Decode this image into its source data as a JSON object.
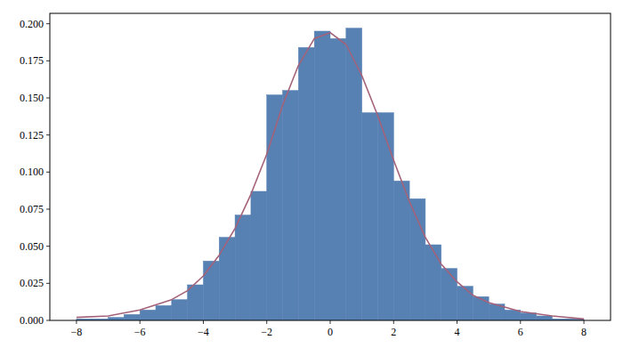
{
  "chart_data": {
    "type": "histogram",
    "bins": [
      -8,
      -7.5,
      -7,
      -6.5,
      -6,
      -5.5,
      -5,
      -4.5,
      -4,
      -3.5,
      -3,
      -2.5,
      -2,
      -1.5,
      -1,
      -0.5,
      0,
      0.5,
      1,
      1.5,
      2,
      2.5,
      3,
      3.5,
      4,
      4.5,
      5,
      5.5,
      6,
      6.5,
      7,
      7.5,
      8
    ],
    "values": [
      0.001,
      0.001,
      0.002,
      0.004,
      0.007,
      0.01,
      0.014,
      0.024,
      0.04,
      0.056,
      0.071,
      0.087,
      0.152,
      0.155,
      0.184,
      0.195,
      0.19,
      0.197,
      0.14,
      0.14,
      0.094,
      0.082,
      0.051,
      0.035,
      0.023,
      0.016,
      0.011,
      0.007,
      0.005,
      0.003,
      0.001,
      0.001
    ],
    "color": "#5780b3",
    "series": [
      {
        "type": "line",
        "color": "#a3627a",
        "x": [
          -8,
          -7,
          -6,
          -5,
          -4.5,
          -4,
          -3.5,
          -3,
          -2.5,
          -2,
          -1.5,
          -1,
          -0.5,
          0,
          0.5,
          1,
          1.5,
          2,
          2.5,
          3,
          3.5,
          4,
          4.5,
          5,
          6,
          7,
          8
        ],
        "values": [
          0.002,
          0.003,
          0.007,
          0.014,
          0.02,
          0.03,
          0.044,
          0.062,
          0.085,
          0.112,
          0.145,
          0.172,
          0.19,
          0.194,
          0.186,
          0.165,
          0.138,
          0.108,
          0.08,
          0.056,
          0.038,
          0.026,
          0.017,
          0.012,
          0.006,
          0.003,
          0.001
        ]
      }
    ],
    "xlim": [
      -8.84,
      8.84
    ],
    "ylim": [
      0,
      0.207
    ],
    "xticks": [
      {
        "value": -8,
        "label": "−8"
      },
      {
        "value": -6,
        "label": "−6"
      },
      {
        "value": -4,
        "label": "−4"
      },
      {
        "value": -2,
        "label": "−2"
      },
      0,
      2,
      4,
      6,
      8
    ],
    "yticks": [
      {
        "value": 0,
        "label": "0.000"
      },
      {
        "value": 0.025,
        "label": "0.025"
      },
      {
        "value": 0.05,
        "label": "0.050"
      },
      {
        "value": 0.075,
        "label": "0.075"
      },
      {
        "value": 0.1,
        "label": "0.100"
      },
      {
        "value": 0.125,
        "label": "0.125"
      },
      {
        "value": 0.15,
        "label": "0.150"
      },
      {
        "value": 0.175,
        "label": "0.175"
      },
      {
        "value": 0.2,
        "label": "0.200"
      }
    ]
  }
}
